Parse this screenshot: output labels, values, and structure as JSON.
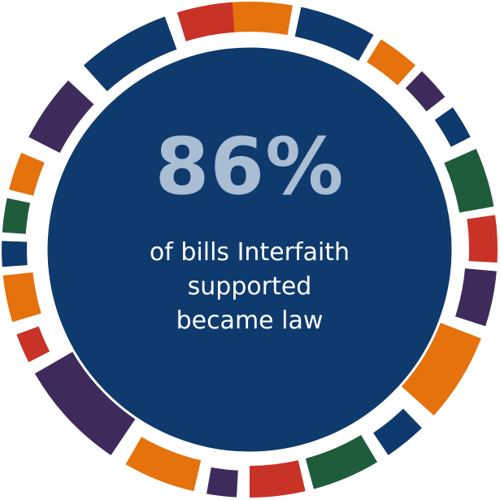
{
  "stat": {
    "value": "86%",
    "caption_lines": [
      "of bills Interfaith",
      "supported",
      "became law"
    ]
  },
  "colors": {
    "navy": "#0f3a6e",
    "purple": "#3e2b5c",
    "orange": "#e5720c",
    "red": "#c83227",
    "green": "#1f5c3c",
    "stat_text": "#a9bdd3",
    "caption_text": "#ffffff"
  },
  "ring_segments": [
    {
      "color": "orange"
    },
    {
      "color": "navy"
    },
    {
      "color": "orange"
    },
    {
      "color": "purple"
    },
    {
      "color": "navy"
    },
    {
      "color": "green"
    },
    {
      "color": "red"
    },
    {
      "color": "purple"
    },
    {
      "color": "orange"
    },
    {
      "color": "navy"
    },
    {
      "color": "green"
    },
    {
      "color": "red"
    },
    {
      "color": "purple"
    },
    {
      "color": "orange"
    },
    {
      "color": "purple"
    },
    {
      "color": "red"
    },
    {
      "color": "orange"
    },
    {
      "color": "navy"
    },
    {
      "color": "green"
    },
    {
      "color": "orange"
    },
    {
      "color": "purple"
    },
    {
      "color": "navy"
    },
    {
      "color": "red"
    }
  ]
}
